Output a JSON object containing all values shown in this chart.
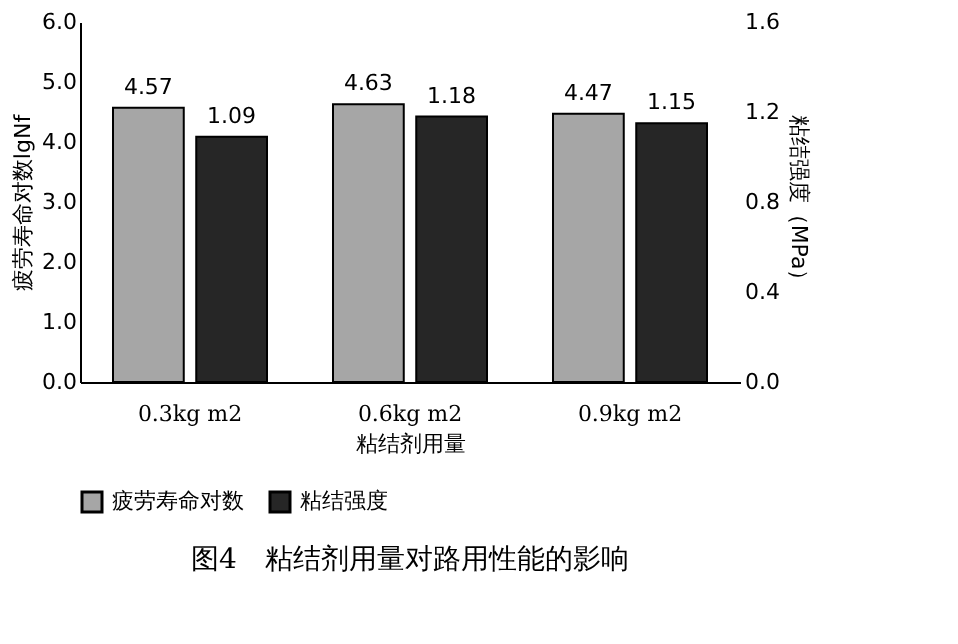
{
  "chart_data": {
    "type": "bar",
    "title": "图4　粘结剂用量对路用性能的影响",
    "xlabel": "粘结剂用量",
    "ylabel": "疲劳寿命对数lgNf",
    "y2label": "粘结强度（MPa）",
    "categories": [
      "0.3kg m2",
      "0.6kg m2",
      "0.9kg m2"
    ],
    "series": [
      {
        "name": "疲劳寿命对数",
        "color": "#a6a6a6",
        "values": [
          4.57,
          4.63,
          4.47
        ]
      },
      {
        "name": "粘结强度",
        "color": "#262626",
        "values": [
          1.09,
          1.18,
          1.15
        ],
        "axis": "y2"
      }
    ],
    "ylim": [
      0,
      6
    ],
    "yticks": [
      {
        "value": 0,
        "label": "0.0"
      },
      {
        "value": 1,
        "label": "1.0"
      },
      {
        "value": 2,
        "label": "2.0"
      },
      {
        "value": 3,
        "label": "3.0"
      },
      {
        "value": 4,
        "label": "4.0"
      },
      {
        "value": 5,
        "label": "5.0"
      },
      {
        "value": 6,
        "label": "6.0"
      }
    ],
    "y2lim": [
      0,
      1.6
    ],
    "y2ticks": [
      {
        "value": 0,
        "label": "0.0"
      },
      {
        "value": 0.4,
        "label": "0.4"
      },
      {
        "value": 0.8,
        "label": "0.8"
      },
      {
        "value": 1.2,
        "label": "1.2"
      },
      {
        "value": 1.6,
        "label": "1.6"
      }
    ],
    "data_labels": true,
    "legend": "bottom",
    "grid": false
  }
}
